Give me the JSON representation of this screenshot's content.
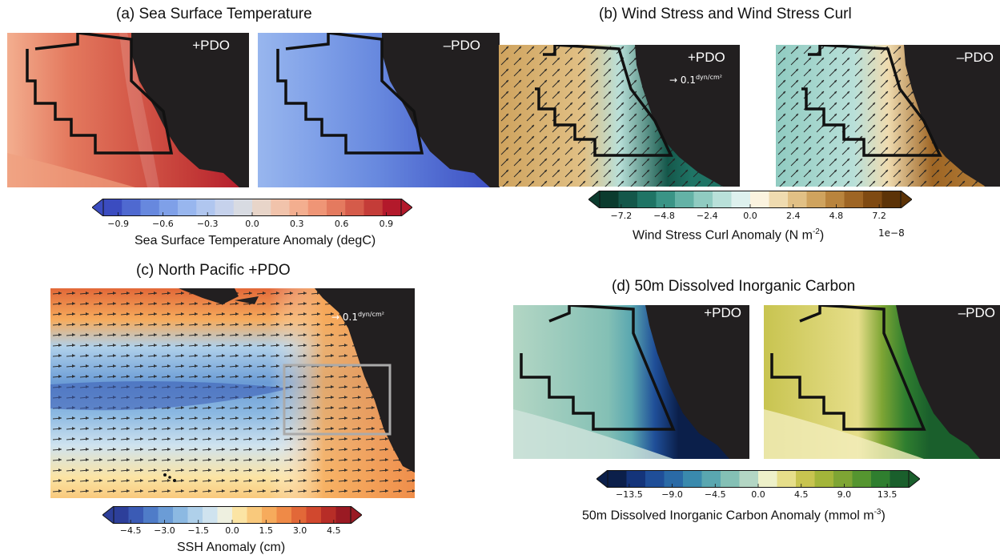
{
  "panels": {
    "a": {
      "title": "(a) Sea Surface Temperature",
      "left_tag": "+PDO",
      "right_tag": "–PDO"
    },
    "b": {
      "title": "(b) Wind Stress and Wind Stress Curl",
      "left_tag": "+PDO",
      "right_tag": "–PDO",
      "ref_vector": "0.1",
      "ref_unit_num": "dyn",
      "ref_unit_den": "cm²"
    },
    "c": {
      "title": "(c) North Pacific +PDO",
      "ref_vector": "0.1",
      "ref_unit_num": "dyn",
      "ref_unit_den": "cm²"
    },
    "d": {
      "title": "(d) 50m Dissolved Inorganic Carbon",
      "left_tag": "+PDO",
      "right_tag": "–PDO"
    }
  },
  "chart_data": [
    {
      "type": "heatmap",
      "title": "(a) Sea Surface Temperature",
      "colorbar": {
        "label": "Sea Surface Temperature Anomaly (degC)",
        "ticks": [
          "−0.9",
          "−0.6",
          "−0.3",
          "0.0",
          "0.3",
          "0.6",
          "0.9"
        ],
        "range": [
          -1.0,
          1.0
        ],
        "extend": "both",
        "colormap": [
          "#3b4cc0",
          "#4f69d0",
          "#6788de",
          "#7fa0e8",
          "#98b6ee",
          "#b0c6ef",
          "#c6d2ec",
          "#d8dbe2",
          "#e8d5c9",
          "#f1c3ab",
          "#f3ae8f",
          "#ef9576",
          "#e47a5f",
          "#d55b4a",
          "#c43c38",
          "#b3192b"
        ]
      },
      "panels": [
        "+PDO",
        "–PDO"
      ]
    },
    {
      "type": "heatmap",
      "title": "(b) Wind Stress and Wind Stress Curl",
      "colorbar": {
        "label": "Wind Stress Curl Anomaly (N m",
        "label_sup": "-2",
        "label_end": ")",
        "multiplier": "1e−8",
        "ticks": [
          "−7.2",
          "−4.8",
          "−2.4",
          "0.0",
          "2.4",
          "4.8",
          "7.2"
        ],
        "range": [
          -8.4,
          8.4
        ],
        "extend": "both",
        "colormap": [
          "#0b3b2e",
          "#14574a",
          "#1f7465",
          "#3a9486",
          "#64b2a6",
          "#90cbc1",
          "#b9e0d9",
          "#def1ee",
          "#fbf3df",
          "#efdbb0",
          "#e1c085",
          "#cfa35e",
          "#b9843d",
          "#9e6524",
          "#7f4a12",
          "#5c3307"
        ]
      },
      "panels": [
        "+PDO",
        "–PDO"
      ]
    },
    {
      "type": "heatmap",
      "title": "(c) North Pacific +PDO",
      "colorbar": {
        "label": "SSH Anomaly (cm)",
        "ticks": [
          "−4.5",
          "−3.0",
          "−1.5",
          "0.0",
          "1.5",
          "3.0",
          "4.5"
        ],
        "range": [
          -5.25,
          5.25
        ],
        "extend": "both",
        "colormap": [
          "#2d3f9a",
          "#3b5bb5",
          "#4f7cc8",
          "#6b9cd6",
          "#8cb9e2",
          "#afd0ea",
          "#cfe3ef",
          "#eef0e0",
          "#fbe4a4",
          "#f9c97c",
          "#f6ab5c",
          "#ef8a47",
          "#e26838",
          "#d1482e",
          "#b72d27",
          "#9a1a23"
        ]
      }
    },
    {
      "type": "heatmap",
      "title": "(d) 50m Dissolved Inorganic Carbon",
      "colorbar": {
        "label": "50m Dissolved Inorganic Carbon Anomaly (mmol m",
        "label_sup": "-3",
        "label_end": ")",
        "ticks": [
          "−13.5",
          "−9.0",
          "−4.5",
          "0.0",
          "4.5",
          "9.0",
          "13.5"
        ],
        "range": [
          -15.75,
          15.75
        ],
        "extend": "both",
        "colormap": [
          "#0b1f4a",
          "#14347a",
          "#1f4e98",
          "#2a6aa6",
          "#3a8aad",
          "#5aa7b0",
          "#84c0b5",
          "#b3d6c4",
          "#eef1c9",
          "#e6de8a",
          "#c8c450",
          "#a3b53a",
          "#7ea534",
          "#559530",
          "#2f7e2f",
          "#1a5f2c"
        ]
      },
      "panels": [
        "+PDO",
        "–PDO"
      ]
    }
  ]
}
